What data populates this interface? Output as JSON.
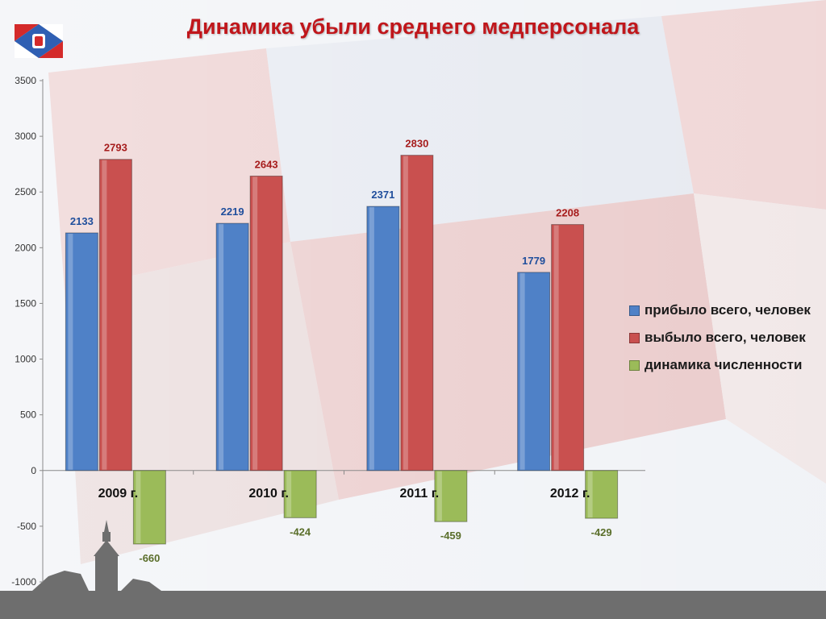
{
  "title": "Динамика убыли среднего медперсонала",
  "colors": {
    "series1": "#4f81c7",
    "series2": "#c9504f",
    "series3": "#9bbb59",
    "label1": "#1f4e9c",
    "label2": "#a61c1c",
    "label3": "#5a6e2a"
  },
  "chart_data": {
    "type": "bar",
    "title": "Динамика убыли среднего медперсонала",
    "categories": [
      "2009 г.",
      "2010 г.",
      "2011 г.",
      "2012 г."
    ],
    "series": [
      {
        "name": "прибыло всего, человек",
        "values": [
          2133,
          2219,
          2371,
          1779
        ]
      },
      {
        "name": "выбыло всего, человек",
        "values": [
          2793,
          2643,
          2830,
          2208
        ]
      },
      {
        "name": "динамика численности",
        "values": [
          -660,
          -424,
          -459,
          -429
        ]
      }
    ],
    "ylim": [
      -1000,
      3500
    ],
    "yticks": [
      "3500",
      "3000",
      "2500",
      "2000",
      "1500",
      "1000",
      "500",
      "0",
      "-500",
      "-1000"
    ],
    "legend_position": "right",
    "grid": false
  }
}
